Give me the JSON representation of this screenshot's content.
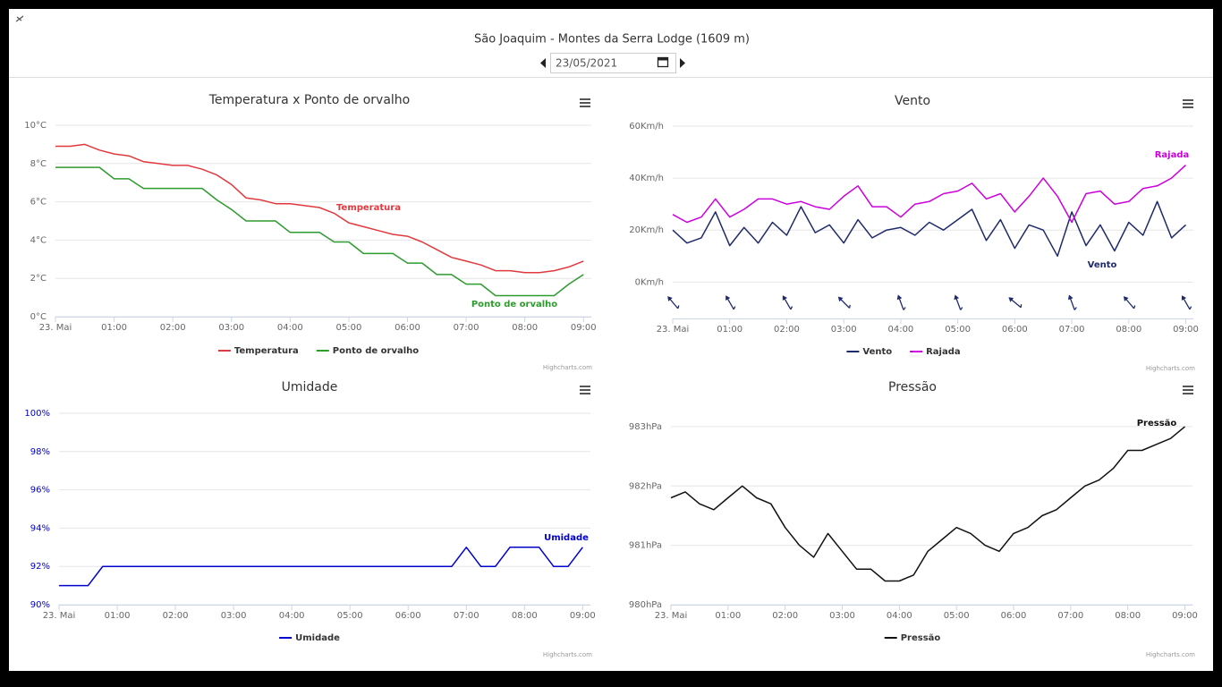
{
  "header": {
    "title": "São Joaquim - Montes da Serra Lodge (1609 m)",
    "date": "23/05/2021"
  },
  "credits": "Highcharts.com",
  "chart_data": [
    {
      "type": "line",
      "title": "Temperatura x Ponto de orvalho",
      "x": [
        "00:00",
        "00:15",
        "00:30",
        "00:45",
        "01:00",
        "01:15",
        "01:30",
        "01:45",
        "02:00",
        "02:15",
        "02:30",
        "02:45",
        "03:00",
        "03:15",
        "03:30",
        "03:45",
        "04:00",
        "04:15",
        "04:30",
        "04:45",
        "05:00",
        "05:15",
        "05:30",
        "05:45",
        "06:00",
        "06:15",
        "06:30",
        "06:45",
        "07:00",
        "07:15",
        "07:30",
        "07:45",
        "08:00",
        "08:15",
        "08:30",
        "08:45",
        "09:00"
      ],
      "xlim": [
        "00:00",
        "09:08"
      ],
      "xticks": [
        {
          "value": "00:00",
          "label": "23. Mai"
        },
        "01:00",
        "02:00",
        "03:00",
        "04:00",
        "05:00",
        "06:00",
        "07:00",
        "08:00",
        "09:00"
      ],
      "ylim": [
        0,
        10
      ],
      "yticks": [
        {
          "value": 0,
          "label": "0°C"
        },
        {
          "value": 2,
          "label": "2°C"
        },
        {
          "value": 4,
          "label": "4°C"
        },
        {
          "value": 6,
          "label": "6°C"
        },
        {
          "value": 8,
          "label": "8°C"
        },
        {
          "value": 10,
          "label": "10°C"
        }
      ],
      "grid": true,
      "series": [
        {
          "name": "Temperatura",
          "color": "#e0393e",
          "values": [
            8.9,
            8.9,
            9.0,
            8.7,
            8.5,
            8.4,
            8.1,
            8.0,
            7.9,
            7.9,
            7.7,
            7.4,
            6.9,
            6.2,
            6.1,
            5.9,
            5.9,
            5.8,
            5.7,
            5.4,
            4.9,
            4.7,
            4.5,
            4.3,
            4.2,
            3.9,
            3.5,
            3.1,
            2.9,
            2.7,
            2.4,
            2.4,
            2.3,
            2.3,
            2.4,
            2.6,
            2.9
          ]
        },
        {
          "name": "Ponto de orvalho",
          "color": "#2e9b2e",
          "values": [
            7.8,
            7.8,
            7.8,
            7.8,
            7.2,
            7.2,
            6.7,
            6.7,
            6.7,
            6.7,
            6.7,
            6.1,
            5.6,
            5.0,
            5.0,
            5.0,
            4.4,
            4.4,
            4.4,
            3.9,
            3.9,
            3.3,
            3.3,
            3.3,
            2.8,
            2.8,
            2.2,
            2.2,
            1.7,
            1.7,
            1.1,
            1.1,
            1.1,
            1.1,
            1.1,
            1.7,
            2.2
          ]
        }
      ]
    },
    {
      "type": "line",
      "title": "Vento",
      "x": [
        "00:00",
        "00:15",
        "00:30",
        "00:45",
        "01:00",
        "01:15",
        "01:30",
        "01:45",
        "02:00",
        "02:15",
        "02:30",
        "02:45",
        "03:00",
        "03:15",
        "03:30",
        "03:45",
        "04:00",
        "04:15",
        "04:30",
        "04:45",
        "05:00",
        "05:15",
        "05:30",
        "05:45",
        "06:00",
        "06:15",
        "06:30",
        "06:45",
        "07:00",
        "07:15",
        "07:30",
        "07:45",
        "08:00",
        "08:15",
        "08:30",
        "08:45",
        "09:00"
      ],
      "xlim": [
        "00:00",
        "09:08"
      ],
      "xticks": [
        {
          "value": "00:00",
          "label": "23. Mai"
        },
        "01:00",
        "02:00",
        "03:00",
        "04:00",
        "05:00",
        "06:00",
        "07:00",
        "08:00",
        "09:00"
      ],
      "ylim": [
        -14,
        60
      ],
      "yticks": [
        {
          "value": 0,
          "label": "0Km/h"
        },
        {
          "value": 20,
          "label": "20Km/h"
        },
        {
          "value": 40,
          "label": "40Km/h"
        },
        {
          "value": 60,
          "label": "60Km/h"
        }
      ],
      "grid": true,
      "series": [
        {
          "name": "Vento",
          "color": "#1f2a6b",
          "values": [
            20,
            15,
            17,
            27,
            14,
            21,
            15,
            23,
            18,
            29,
            19,
            22,
            15,
            24,
            17,
            20,
            21,
            18,
            23,
            20,
            24,
            28,
            16,
            24,
            13,
            22,
            20,
            10,
            27,
            14,
            22,
            12,
            23,
            18,
            31,
            17,
            22
          ]
        },
        {
          "name": "Rajada",
          "color": "#cc00dd",
          "values": [
            26,
            23,
            25,
            32,
            25,
            28,
            32,
            32,
            30,
            31,
            29,
            28,
            33,
            37,
            29,
            29,
            25,
            30,
            31,
            34,
            35,
            38,
            32,
            34,
            27,
            33,
            40,
            33,
            23,
            34,
            35,
            30,
            31,
            36,
            37,
            40,
            45
          ]
        }
      ],
      "direction": {
        "color": "#1f2a6b",
        "x": [
          "00:00",
          "01:00",
          "02:00",
          "03:00",
          "04:00",
          "05:00",
          "06:00",
          "07:00",
          "08:00",
          "09:00"
        ],
        "values": [
          320,
          330,
          330,
          315,
          340,
          340,
          310,
          340,
          320,
          330
        ]
      }
    },
    {
      "type": "line",
      "title": "Umidade",
      "x": [
        "00:00",
        "00:15",
        "00:30",
        "00:45",
        "01:00",
        "01:15",
        "01:30",
        "01:45",
        "02:00",
        "02:15",
        "02:30",
        "02:45",
        "03:00",
        "03:15",
        "03:30",
        "03:45",
        "04:00",
        "04:15",
        "04:30",
        "04:45",
        "05:00",
        "05:15",
        "05:30",
        "05:45",
        "06:00",
        "06:15",
        "06:30",
        "06:45",
        "07:00",
        "07:15",
        "07:30",
        "07:45",
        "08:00",
        "08:15",
        "08:30",
        "08:45",
        "09:00"
      ],
      "xlim": [
        "00:00",
        "09:08"
      ],
      "xticks": [
        {
          "value": "00:00",
          "label": "23. Mai"
        },
        "01:00",
        "02:00",
        "03:00",
        "04:00",
        "05:00",
        "06:00",
        "07:00",
        "08:00",
        "09:00"
      ],
      "ylim": [
        90,
        100
      ],
      "yticks": [
        {
          "value": 90,
          "label": "90%"
        },
        {
          "value": 92,
          "label": "92%"
        },
        {
          "value": 94,
          "label": "94%"
        },
        {
          "value": 96,
          "label": "96%"
        },
        {
          "value": 98,
          "label": "98%"
        },
        {
          "value": 100,
          "label": "100%"
        }
      ],
      "ytick_color": "#0000cc",
      "grid": true,
      "series": [
        {
          "name": "Umidade",
          "color": "#0000cc",
          "values": [
            91,
            91,
            91,
            92,
            92,
            92,
            92,
            92,
            92,
            92,
            92,
            92,
            92,
            92,
            92,
            92,
            92,
            92,
            92,
            92,
            92,
            92,
            92,
            92,
            92,
            92,
            92,
            92,
            93,
            92,
            92,
            93,
            93,
            93,
            92,
            92,
            93
          ]
        }
      ]
    },
    {
      "type": "line",
      "title": "Pressão",
      "x": [
        "00:00",
        "00:15",
        "00:30",
        "00:45",
        "01:00",
        "01:15",
        "01:30",
        "01:45",
        "02:00",
        "02:15",
        "02:30",
        "02:45",
        "03:00",
        "03:15",
        "03:30",
        "03:45",
        "04:00",
        "04:15",
        "04:30",
        "04:45",
        "05:00",
        "05:15",
        "05:30",
        "05:45",
        "06:00",
        "06:15",
        "06:30",
        "06:45",
        "07:00",
        "07:15",
        "07:30",
        "07:45",
        "08:00",
        "08:15",
        "08:30",
        "08:45",
        "09:00"
      ],
      "xlim": [
        "00:00",
        "09:08"
      ],
      "xticks": [
        {
          "value": "00:00",
          "label": "23. Mai"
        },
        "01:00",
        "02:00",
        "03:00",
        "04:00",
        "05:00",
        "06:00",
        "07:00",
        "08:00",
        "09:00"
      ],
      "ylim": [
        980,
        983.3
      ],
      "yticks": [
        {
          "value": 980,
          "label": "980hPa"
        },
        {
          "value": 981,
          "label": "981hPa"
        },
        {
          "value": 982,
          "label": "982hPa"
        },
        {
          "value": 983,
          "label": "983hPa"
        }
      ],
      "grid": true,
      "series": [
        {
          "name": "Pressão",
          "color": "#111111",
          "values": [
            981.8,
            981.9,
            981.7,
            981.6,
            981.8,
            982.0,
            981.8,
            981.7,
            981.3,
            981.0,
            980.8,
            981.2,
            980.9,
            980.6,
            980.6,
            980.4,
            980.4,
            980.5,
            980.9,
            981.1,
            981.3,
            981.2,
            981.0,
            980.9,
            981.2,
            981.3,
            981.5,
            981.6,
            981.8,
            982.0,
            982.1,
            982.3,
            982.6,
            982.6,
            982.7,
            982.8,
            983.0
          ]
        }
      ]
    }
  ]
}
